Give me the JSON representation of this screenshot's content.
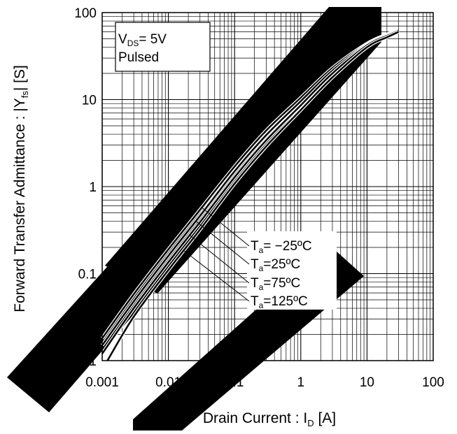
{
  "chart_data": {
    "type": "line",
    "x_scale": "log",
    "y_scale": "log",
    "xlim": [
      0.001,
      100
    ],
    "ylim": [
      0.01,
      100
    ],
    "grid": true,
    "xlabel": "Drain Current : I",
    "xlabel_sub": "D",
    "xlabel_unit": " [A]",
    "ylabel": "Forward Transfer Admittance : |Y",
    "ylabel_sub": "fs",
    "ylabel_unit": "| [S]",
    "x_ticks": [
      {
        "value": 0.001,
        "label": "0.001"
      },
      {
        "value": 0.01,
        "label": "0.01"
      },
      {
        "value": 0.1,
        "label": "0.1"
      },
      {
        "value": 1,
        "label": "1"
      },
      {
        "value": 10,
        "label": "10"
      },
      {
        "value": 100,
        "label": "100"
      }
    ],
    "y_ticks": [
      {
        "value": 0.01,
        "label": "0.01"
      },
      {
        "value": 0.1,
        "label": "0.1"
      },
      {
        "value": 1,
        "label": "1"
      },
      {
        "value": 10,
        "label": "10"
      },
      {
        "value": 100,
        "label": "100"
      }
    ],
    "conditions": {
      "line1_main": "V",
      "line1_sub": "DS",
      "line1_rest": "= 5V",
      "line2": "Pulsed"
    },
    "series": [
      {
        "name": "Ta= -25ºC",
        "label_main": "T",
        "label_sub": "a",
        "label_rest": "= −25ºC",
        "x": [
          0.001,
          0.003,
          0.01,
          0.03,
          0.1,
          0.3,
          1,
          3,
          10,
          20,
          30
        ],
        "y": [
          0.018,
          0.058,
          0.19,
          0.54,
          1.7,
          4.4,
          10.5,
          23,
          44,
          56,
          64
        ]
      },
      {
        "name": "Ta=25ºC",
        "label_main": "T",
        "label_sub": "a",
        "label_rest": "=25ºC",
        "x": [
          0.001,
          0.003,
          0.01,
          0.03,
          0.1,
          0.3,
          1,
          3,
          10,
          20,
          30
        ],
        "y": [
          0.015,
          0.048,
          0.16,
          0.46,
          1.5,
          3.9,
          9.6,
          21.5,
          43,
          55,
          63
        ]
      },
      {
        "name": "Ta=75ºC",
        "label_main": "T",
        "label_sub": "a",
        "label_rest": "=75ºC",
        "x": [
          0.001,
          0.003,
          0.01,
          0.03,
          0.1,
          0.3,
          1,
          3,
          10,
          20,
          30
        ],
        "y": [
          0.012,
          0.04,
          0.135,
          0.39,
          1.28,
          3.4,
          8.6,
          20,
          42,
          54,
          62
        ]
      },
      {
        "name": "Ta=125ºC",
        "label_main": "T",
        "label_sub": "a",
        "label_rest": "=125ºC",
        "x": [
          0.0012,
          0.003,
          0.01,
          0.03,
          0.1,
          0.3,
          1,
          3,
          10,
          20,
          30
        ],
        "y": [
          0.01,
          0.032,
          0.11,
          0.32,
          1.08,
          2.9,
          7.6,
          18,
          40,
          52,
          60
        ]
      }
    ],
    "label_anchor_x": [
      0.032,
      0.026,
      0.021,
      0.017
    ],
    "line_color": "#000000",
    "watermark_color": "#000000"
  }
}
